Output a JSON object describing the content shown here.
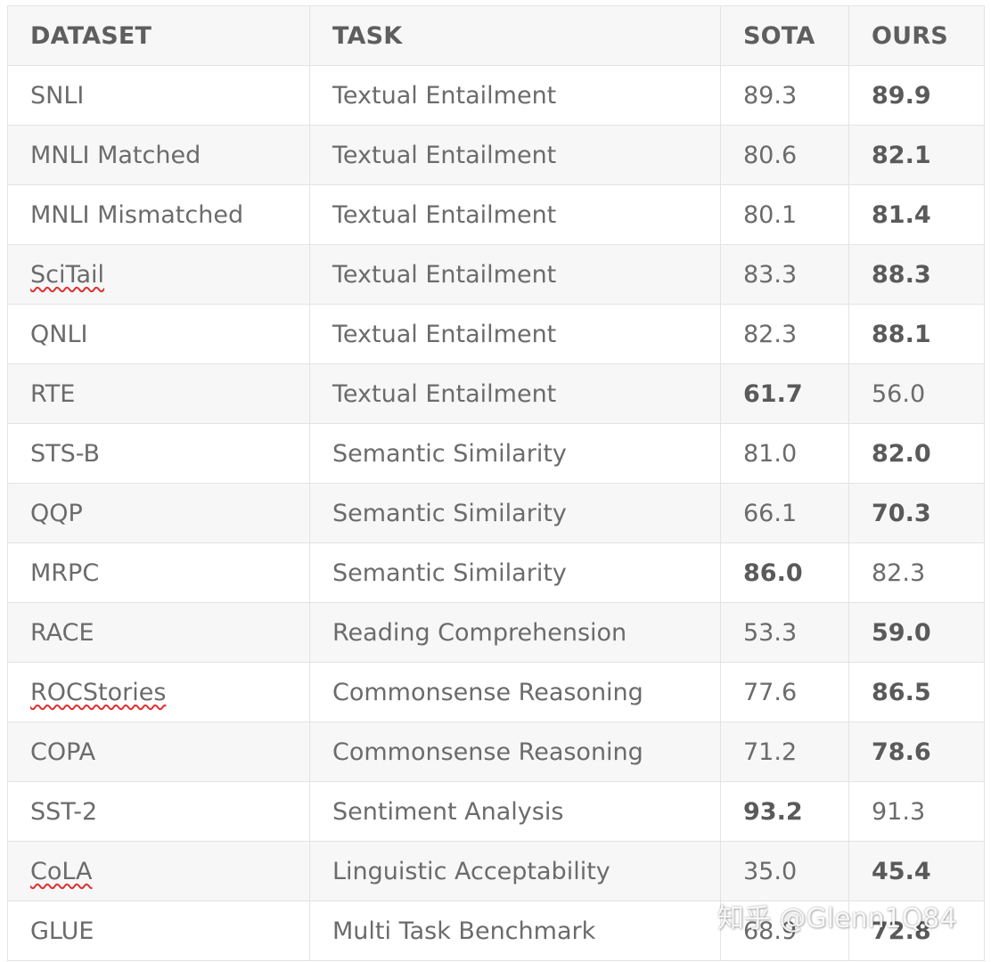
{
  "headers": {
    "dataset": "DATASET",
    "task": "TASK",
    "sota": "SOTA",
    "ours": "OURS"
  },
  "rows": [
    {
      "dataset": "SNLI",
      "task": "Textual Entailment",
      "sota": "89.3",
      "ours": "89.9",
      "best": "ours",
      "spell": false
    },
    {
      "dataset": "MNLI Matched",
      "task": "Textual Entailment",
      "sota": "80.6",
      "ours": "82.1",
      "best": "ours",
      "spell": false
    },
    {
      "dataset": "MNLI Mismatched",
      "task": "Textual Entailment",
      "sota": "80.1",
      "ours": "81.4",
      "best": "ours",
      "spell": false
    },
    {
      "dataset": "SciTail",
      "task": "Textual Entailment",
      "sota": "83.3",
      "ours": "88.3",
      "best": "ours",
      "spell": true
    },
    {
      "dataset": "QNLI",
      "task": "Textual Entailment",
      "sota": "82.3",
      "ours": "88.1",
      "best": "ours",
      "spell": false
    },
    {
      "dataset": "RTE",
      "task": "Textual Entailment",
      "sota": "61.7",
      "ours": "56.0",
      "best": "sota",
      "spell": false
    },
    {
      "dataset": "STS-B",
      "task": "Semantic Similarity",
      "sota": "81.0",
      "ours": "82.0",
      "best": "ours",
      "spell": false
    },
    {
      "dataset": "QQP",
      "task": "Semantic Similarity",
      "sota": "66.1",
      "ours": "70.3",
      "best": "ours",
      "spell": false
    },
    {
      "dataset": "MRPC",
      "task": "Semantic Similarity",
      "sota": "86.0",
      "ours": "82.3",
      "best": "sota",
      "spell": false
    },
    {
      "dataset": "RACE",
      "task": "Reading Comprehension",
      "sota": "53.3",
      "ours": "59.0",
      "best": "ours",
      "spell": false
    },
    {
      "dataset": "ROCStories",
      "task": "Commonsense Reasoning",
      "sota": "77.6",
      "ours": "86.5",
      "best": "ours",
      "spell": true
    },
    {
      "dataset": "COPA",
      "task": "Commonsense Reasoning",
      "sota": "71.2",
      "ours": "78.6",
      "best": "ours",
      "spell": false
    },
    {
      "dataset": "SST-2",
      "task": "Sentiment Analysis",
      "sota": "93.2",
      "ours": "91.3",
      "best": "sota",
      "spell": false
    },
    {
      "dataset": "CoLA",
      "task": "Linguistic Acceptability",
      "sota": "35.0",
      "ours": "45.4",
      "best": "ours",
      "spell": true
    },
    {
      "dataset": "GLUE",
      "task": "Multi Task Benchmark",
      "sota": "68.9",
      "ours": "72.8",
      "best": "ours",
      "spell": false
    }
  ],
  "watermark": "知乎 @Glenn1Q84",
  "colors": {
    "text": "#6b6b6b",
    "header_text": "#5e5e5e",
    "border": "#e3e3e3",
    "stripe": "#f7f7f7",
    "spellcheck": "#e03030"
  }
}
